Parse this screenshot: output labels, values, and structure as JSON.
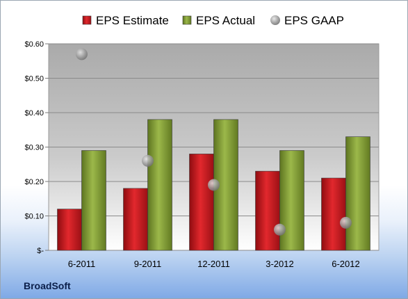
{
  "chart_data": {
    "type": "bar",
    "categories": [
      "6-2011",
      "9-2011",
      "12-2011",
      "3-2012",
      "6-2012"
    ],
    "series": [
      {
        "name": "EPS Estimate",
        "kind": "bar",
        "color": "#c8171d",
        "values": [
          0.12,
          0.18,
          0.28,
          0.23,
          0.21
        ]
      },
      {
        "name": "EPS Actual",
        "kind": "bar",
        "color": "#7f9b30",
        "values": [
          0.29,
          0.38,
          0.38,
          0.29,
          0.33
        ]
      },
      {
        "name": "EPS GAAP",
        "kind": "scatter",
        "color": "#9a9a9a",
        "values": [
          0.57,
          0.26,
          0.19,
          0.06,
          0.08
        ]
      }
    ],
    "yticks": [
      "$-",
      "$0.10",
      "$0.20",
      "$0.30",
      "$0.40",
      "$0.50",
      "$0.60"
    ],
    "ylim": [
      0,
      0.6
    ],
    "grid": true,
    "legend": "top"
  },
  "brand": "BroadSoft"
}
